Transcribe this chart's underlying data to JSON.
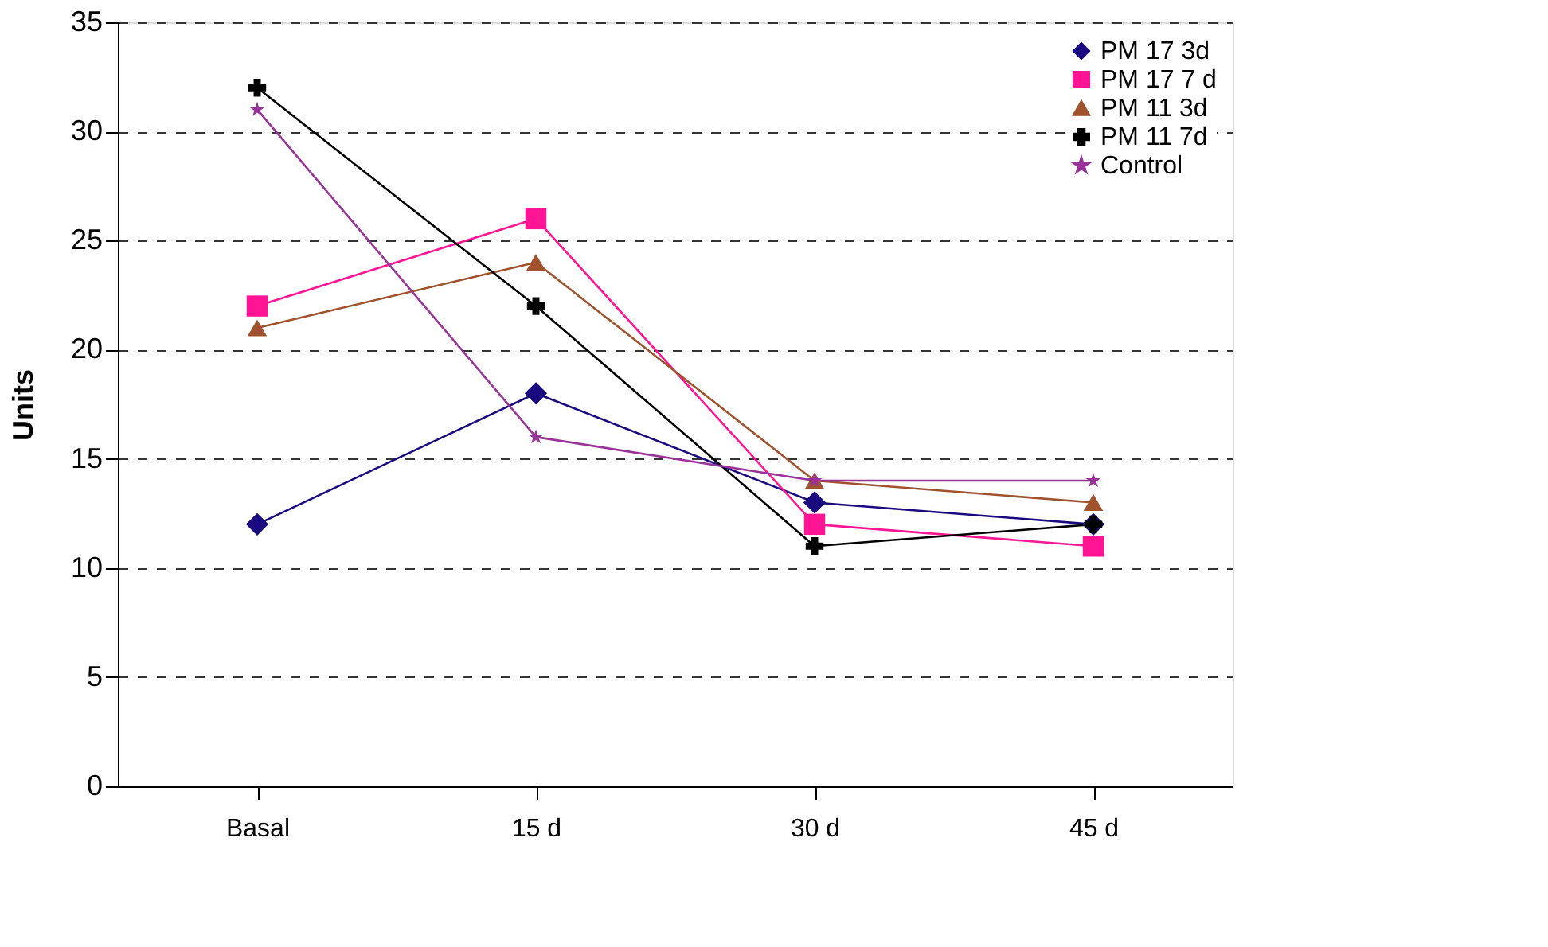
{
  "chart_data": {
    "type": "line",
    "ylabel": "Units",
    "categories": [
      "Basal",
      "15 d",
      "30 d",
      "45 d"
    ],
    "series": [
      {
        "name": "PM 17 3d",
        "color": "#1a0a80",
        "marker": "diamond",
        "values": [
          12,
          18,
          13,
          12
        ]
      },
      {
        "name": "PM 17 7 d",
        "color": "#ff1493",
        "marker": "square",
        "values": [
          22,
          26,
          12,
          11
        ]
      },
      {
        "name": "PM 11 3d",
        "color": "#a0522d",
        "marker": "triangle",
        "values": [
          21,
          24,
          14,
          13
        ]
      },
      {
        "name": "PM  11 7d",
        "color": "#000000",
        "marker": "cross",
        "values": [
          32,
          22,
          11,
          12
        ]
      },
      {
        "name": "Control",
        "color": "#993399",
        "marker": "star",
        "values": [
          31,
          16,
          14,
          14
        ]
      }
    ],
    "ylim": [
      0,
      35
    ],
    "yticks": [
      0,
      5,
      10,
      15,
      20,
      25,
      30,
      35
    ],
    "grid": "y",
    "legend": "top right",
    "line_style": "solid"
  }
}
